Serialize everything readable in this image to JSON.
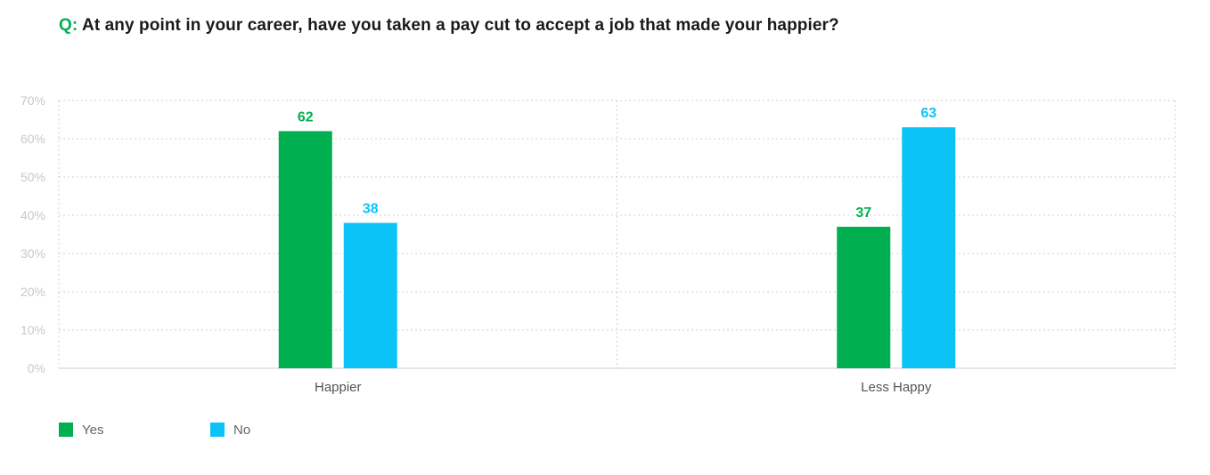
{
  "title": {
    "prefix": "Q:",
    "text": "At any point in your career, have you taken a pay cut to accept a job that made your happier?"
  },
  "chart_data": {
    "type": "bar",
    "categories": [
      "Happier",
      "Less Happy"
    ],
    "series": [
      {
        "name": "Yes",
        "values": [
          62,
          37
        ],
        "color": "#00b050"
      },
      {
        "name": "No",
        "values": [
          38,
          63
        ],
        "color": "#0cc3f7"
      }
    ],
    "y_ticks": [
      "0%",
      "10%",
      "20%",
      "30%",
      "40%",
      "50%",
      "60%",
      "70%"
    ],
    "ylim": [
      0,
      70
    ],
    "grid": true,
    "legend_position": "bottom-left",
    "data_labels": true
  }
}
